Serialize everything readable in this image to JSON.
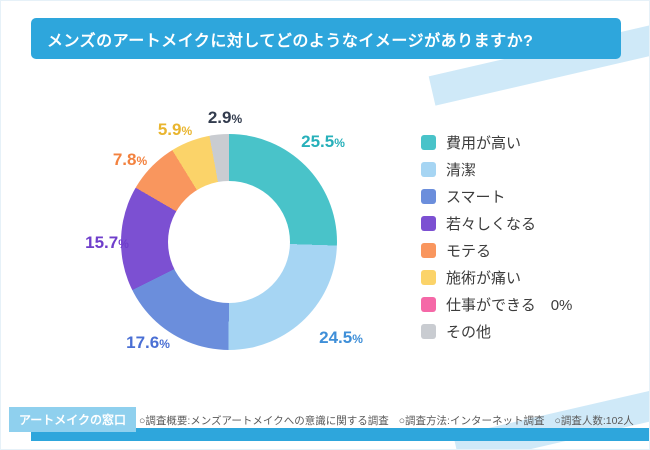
{
  "theme": {
    "accent": "#2ea6dc",
    "stripe": "#cfe9f8",
    "badge_bg": "#8fd0ee",
    "background": "#ffffff"
  },
  "header": {
    "title": "メンズのアートメイクに対してどのようなイメージがありますか?"
  },
  "chart_data": {
    "type": "pie",
    "subtype": "donut",
    "title": "メンズのアートメイクに対してどのようなイメージがありますか?",
    "unit": "%",
    "start_angle_deg": 0,
    "direction": "clockwise",
    "hole_ratio": 0.57,
    "legend_position": "right",
    "total": 100,
    "segments": [
      {
        "label": "費用が高い",
        "legend_label": "費用が高い",
        "value": 25.5,
        "color": "#49c3c9",
        "label_color": "#27b0ba"
      },
      {
        "label": "清潔",
        "legend_label": "清潔",
        "value": 24.5,
        "color": "#a6d5f3",
        "label_color": "#3f8fd8"
      },
      {
        "label": "スマート",
        "legend_label": "スマート",
        "value": 17.6,
        "color": "#6b8edc",
        "label_color": "#4a6fd4"
      },
      {
        "label": "若々しくなる",
        "legend_label": "若々しくなる",
        "value": 15.7,
        "color": "#7c50d2",
        "label_color": "#6f3ecb"
      },
      {
        "label": "モテる",
        "legend_label": "モテる",
        "value": 7.8,
        "color": "#f9965e",
        "label_color": "#f3823f"
      },
      {
        "label": "施術が痛い",
        "legend_label": "施術が痛い",
        "value": 5.9,
        "color": "#fbd369",
        "label_color": "#e9b52f"
      },
      {
        "label": "仕事ができる",
        "legend_label": "仕事ができる　0%",
        "value": 0,
        "color": "#f568a7",
        "label_color": "#f568a7"
      },
      {
        "label": "その他",
        "legend_label": "その他",
        "value": 2.9,
        "color": "#c9ccd1",
        "label_color": "#333c4e"
      }
    ]
  },
  "footer": {
    "badge": "アートメイクの窓口",
    "notes": [
      "○調査概要:メンズアートメイクへの意識に関する調査",
      "○調査方法:インターネット調査",
      "○調査人数:102人"
    ]
  }
}
